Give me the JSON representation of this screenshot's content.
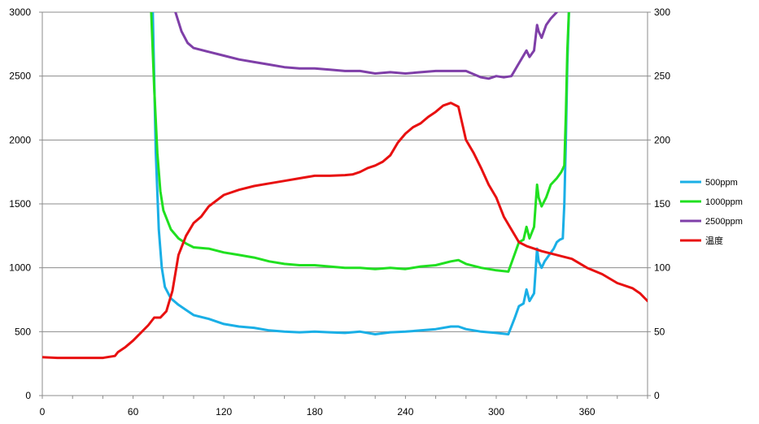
{
  "chart_data": {
    "type": "line",
    "title": "",
    "xlabel": "",
    "ylabel": "",
    "y2label": "",
    "xlim": [
      0,
      400
    ],
    "ylim": [
      0,
      3000
    ],
    "y2lim": [
      0,
      300
    ],
    "xticks": [
      0,
      60,
      120,
      180,
      240,
      300,
      360
    ],
    "yticks": [
      0,
      500,
      1000,
      1500,
      2000,
      2500,
      3000
    ],
    "y2ticks": [
      0,
      50,
      100,
      150,
      200,
      250,
      300
    ],
    "grid": "horizontal",
    "legend_position": "right",
    "series": [
      {
        "name": "500ppm",
        "color": "#1AAFE6",
        "axis": "left",
        "x": [
          73,
          75,
          77,
          79,
          81,
          85,
          90,
          95,
          100,
          110,
          120,
          130,
          140,
          150,
          160,
          170,
          180,
          190,
          200,
          210,
          220,
          230,
          240,
          250,
          260,
          270,
          275,
          280,
          290,
          300,
          308,
          312,
          315,
          318,
          320,
          322,
          325,
          327,
          328,
          330,
          332,
          335,
          338,
          340,
          342,
          344,
          345,
          346,
          347,
          348
        ],
        "y": [
          3000,
          1900,
          1300,
          1000,
          850,
          760,
          710,
          670,
          630,
          600,
          560,
          540,
          530,
          510,
          500,
          495,
          500,
          495,
          490,
          500,
          480,
          495,
          500,
          510,
          520,
          540,
          540,
          520,
          500,
          490,
          480,
          600,
          700,
          720,
          830,
          740,
          800,
          1150,
          1050,
          1000,
          1050,
          1100,
          1150,
          1200,
          1220,
          1230,
          1500,
          2000,
          2600,
          3000
        ]
      },
      {
        "name": "1000ppm",
        "color": "#20E020",
        "axis": "left",
        "x": [
          72,
          74,
          76,
          78,
          80,
          85,
          90,
          95,
          100,
          110,
          120,
          130,
          140,
          150,
          160,
          170,
          180,
          190,
          200,
          210,
          220,
          230,
          240,
          250,
          260,
          270,
          275,
          280,
          290,
          300,
          308,
          312,
          315,
          318,
          320,
          322,
          325,
          327,
          328,
          330,
          333,
          336,
          340,
          343,
          345,
          346,
          347,
          348
        ],
        "y": [
          3000,
          2400,
          1900,
          1600,
          1450,
          1300,
          1230,
          1190,
          1160,
          1150,
          1120,
          1100,
          1080,
          1050,
          1030,
          1020,
          1020,
          1010,
          1000,
          1000,
          990,
          1000,
          990,
          1010,
          1020,
          1050,
          1060,
          1030,
          1000,
          980,
          970,
          1100,
          1200,
          1220,
          1320,
          1230,
          1320,
          1650,
          1550,
          1480,
          1550,
          1650,
          1700,
          1750,
          1800,
          2200,
          2700,
          3000
        ]
      },
      {
        "name": "2500ppm",
        "color": "#7F3FA8",
        "axis": "left",
        "x": [
          88,
          92,
          96,
          100,
          110,
          120,
          130,
          140,
          150,
          160,
          170,
          180,
          190,
          200,
          210,
          220,
          230,
          240,
          250,
          260,
          270,
          280,
          290,
          295,
          300,
          305,
          310,
          315,
          320,
          322,
          325,
          327,
          328,
          330,
          333,
          336,
          340
        ],
        "y": [
          3000,
          2850,
          2760,
          2720,
          2690,
          2660,
          2630,
          2610,
          2590,
          2570,
          2560,
          2560,
          2550,
          2540,
          2540,
          2520,
          2530,
          2520,
          2530,
          2540,
          2540,
          2540,
          2490,
          2480,
          2500,
          2490,
          2500,
          2600,
          2700,
          2650,
          2700,
          2900,
          2850,
          2800,
          2900,
          2950,
          3000
        ]
      },
      {
        "name": "温度",
        "color": "#E81010",
        "axis": "right",
        "x": [
          0,
          10,
          20,
          30,
          40,
          48,
          50,
          55,
          60,
          65,
          70,
          74,
          78,
          82,
          86,
          90,
          95,
          100,
          105,
          110,
          120,
          130,
          140,
          150,
          160,
          170,
          180,
          190,
          200,
          205,
          210,
          215,
          220,
          225,
          230,
          235,
          240,
          245,
          250,
          255,
          260,
          265,
          270,
          275,
          280,
          285,
          290,
          295,
          300,
          305,
          310,
          315,
          320,
          330,
          340,
          350,
          360,
          370,
          380,
          390,
          395,
          400
        ],
        "y": [
          30,
          29.5,
          29.5,
          29.5,
          29.5,
          31,
          34,
          38,
          43,
          49,
          55,
          61,
          61,
          66,
          82,
          110,
          125,
          135,
          140,
          148,
          157,
          161,
          164,
          166,
          168,
          170,
          172,
          172,
          172.5,
          173,
          175,
          178,
          180,
          183,
          188,
          198,
          205,
          210,
          213,
          218,
          222,
          227,
          229,
          226,
          200,
          190,
          178,
          165,
          155,
          140,
          130,
          120,
          117,
          113,
          110,
          107,
          100,
          95,
          88,
          84,
          80,
          74
        ]
      }
    ]
  }
}
